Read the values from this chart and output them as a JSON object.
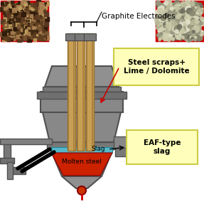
{
  "bg_color": "#ffffff",
  "graphite_label": "Graphite Electrodes",
  "scraps_label": "Steel scraps+\nLime / Dolomite",
  "slag_label": "EAF-type\nslag",
  "molten_label": "Molten steel",
  "slag_inline": "Slag",
  "furnace_gray": "#808080",
  "furnace_dark": "#505050",
  "furnace_mid": "#909090",
  "furnace_light": "#aaaaaa",
  "electrode_color": "#c8a055",
  "electrode_dark": "#9a7030",
  "molten_steel_color": "#cc2200",
  "slag_color": "#55b8c8",
  "yellow_box": "#ffffbb",
  "yellow_border": "#cccc44",
  "red_border": "#cc0000",
  "label_fontsize": 7.5,
  "annot_fontsize": 6.5
}
